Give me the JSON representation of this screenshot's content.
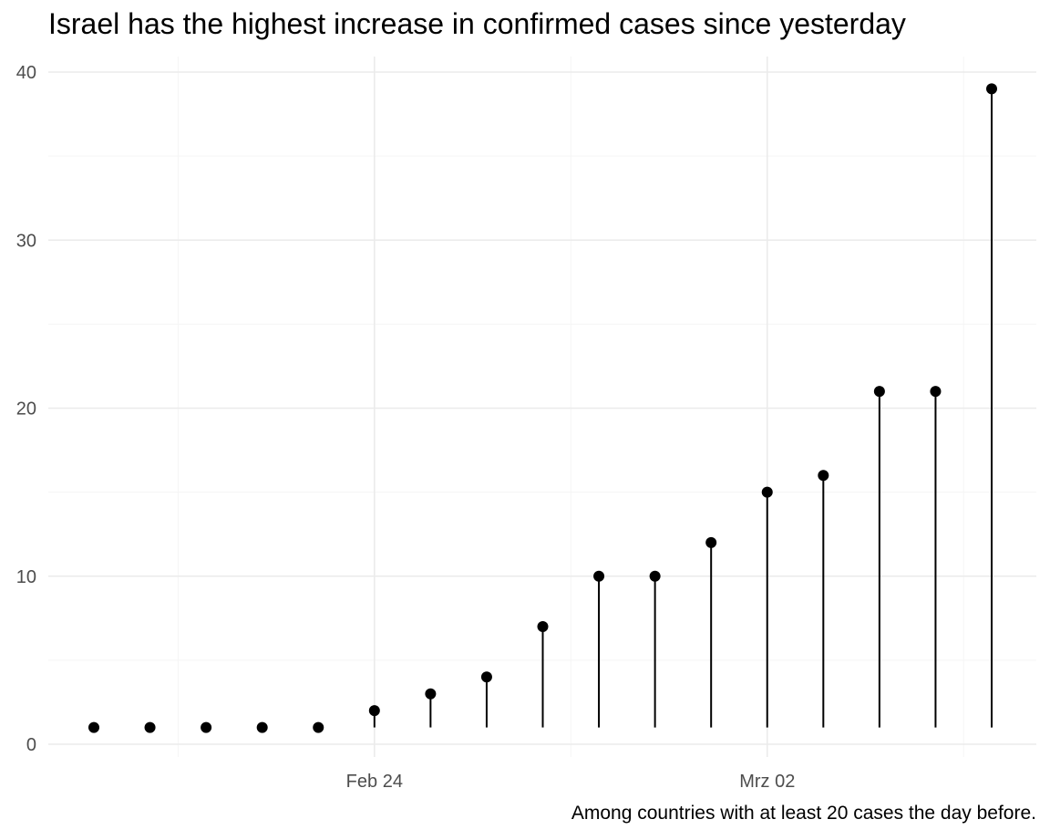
{
  "chart_data": {
    "type": "lollipop",
    "title": "Israel has the highest increase in confirmed cases since yesterday",
    "caption": "Among countries with at least 20 cases the day before.",
    "xlabel": "",
    "ylabel": "",
    "x_axis_type": "date",
    "x_ticks": [
      {
        "date": "2020-02-24",
        "label": "Feb 24"
      },
      {
        "date": "2020-03-02",
        "label": "Mrz 02"
      }
    ],
    "y_ticks": [
      0,
      10,
      20,
      30,
      40
    ],
    "ylim": [
      0,
      40
    ],
    "baseline": 1,
    "points": [
      {
        "date": "2020-02-19",
        "value": 1
      },
      {
        "date": "2020-02-20",
        "value": 1
      },
      {
        "date": "2020-02-21",
        "value": 1
      },
      {
        "date": "2020-02-22",
        "value": 1
      },
      {
        "date": "2020-02-23",
        "value": 1
      },
      {
        "date": "2020-02-24",
        "value": 2
      },
      {
        "date": "2020-02-25",
        "value": 3
      },
      {
        "date": "2020-02-26",
        "value": 4
      },
      {
        "date": "2020-02-27",
        "value": 7
      },
      {
        "date": "2020-02-28",
        "value": 10
      },
      {
        "date": "2020-02-29",
        "value": 10
      },
      {
        "date": "2020-03-01",
        "value": 12
      },
      {
        "date": "2020-03-02",
        "value": 15
      },
      {
        "date": "2020-03-03",
        "value": 16
      },
      {
        "date": "2020-03-04",
        "value": 21
      },
      {
        "date": "2020-03-05",
        "value": 21
      },
      {
        "date": "2020-03-06",
        "value": 39
      }
    ],
    "grid": true,
    "legend": "none",
    "colors": {
      "mark": "#000000",
      "grid_major": "#ebebeb",
      "grid_minor": "#f5f5f5",
      "tick_text": "#4d4d4d"
    }
  }
}
